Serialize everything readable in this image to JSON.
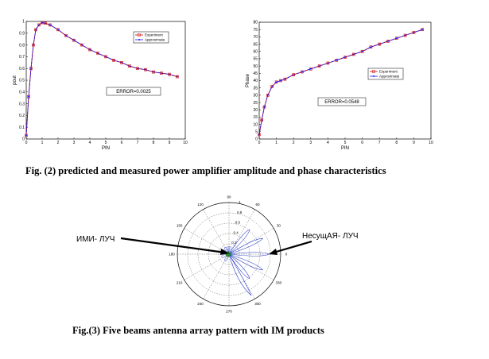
{
  "captions": {
    "fig2": "Fig. (2) predicted and measured power amplifier amplitude and phase characteristics",
    "fig3": "Fig.(3) Five beams antenna array pattern with IM products"
  },
  "chart_data": [
    {
      "type": "line",
      "xlabel": "PIN",
      "ylabel": "pout",
      "xlim": [
        0,
        10
      ],
      "ylim": [
        0,
        1
      ],
      "xticks": [
        "0",
        "1",
        "2",
        "3",
        "4",
        "5",
        "6",
        "7",
        "8",
        "9",
        "10"
      ],
      "yticks": [
        "0",
        "0.1",
        "0.2",
        "0.3",
        "0.4",
        "0.5",
        "0.6",
        "0.7",
        "0.8",
        "0.9",
        "1"
      ],
      "legend": [
        "Experiment",
        "Approximate"
      ],
      "legend_position": "top-right",
      "annotation": "ERROR=0.0025",
      "colors": {
        "experiment": "#cc0000",
        "approximate": "#1a1aff"
      },
      "series": [
        {
          "name": "Experiment",
          "x": [
            0,
            0.15,
            0.3,
            0.45,
            0.6,
            0.8,
            1,
            1.2,
            1.5,
            2,
            2.5,
            3,
            3.5,
            4,
            4.5,
            5,
            5.5,
            6,
            6.5,
            7,
            7.5,
            8,
            8.5,
            9,
            9.5
          ],
          "y": [
            0.03,
            0.36,
            0.6,
            0.8,
            0.93,
            0.97,
            0.99,
            0.985,
            0.97,
            0.93,
            0.88,
            0.84,
            0.8,
            0.76,
            0.73,
            0.7,
            0.67,
            0.65,
            0.62,
            0.6,
            0.59,
            0.57,
            0.56,
            0.55,
            0.53
          ]
        },
        {
          "name": "Approximate",
          "x": [
            0,
            0.15,
            0.3,
            0.45,
            0.6,
            0.8,
            1,
            1.2,
            1.5,
            2,
            2.5,
            3,
            3.5,
            4,
            4.5,
            5,
            5.5,
            6,
            6.5,
            7,
            7.5,
            8,
            8.5,
            9,
            9.5
          ],
          "y": [
            0.03,
            0.36,
            0.6,
            0.8,
            0.93,
            0.97,
            0.99,
            0.985,
            0.97,
            0.93,
            0.88,
            0.84,
            0.8,
            0.76,
            0.73,
            0.7,
            0.67,
            0.65,
            0.62,
            0.6,
            0.59,
            0.57,
            0.56,
            0.55,
            0.53
          ]
        }
      ]
    },
    {
      "type": "line",
      "xlabel": "PIN",
      "ylabel": "Phase",
      "xlim": [
        0,
        10
      ],
      "ylim": [
        0,
        80
      ],
      "xticks": [
        "0",
        "1",
        "2",
        "3",
        "4",
        "5",
        "6",
        "7",
        "8",
        "9",
        "10"
      ],
      "yticks": [
        "0",
        "5",
        "10",
        "15",
        "20",
        "25",
        "30",
        "35",
        "40",
        "45",
        "50",
        "55",
        "60",
        "65",
        "70",
        "75",
        "80"
      ],
      "legend": [
        "Experiment",
        "Approximate"
      ],
      "legend_position": "middle-right",
      "annotation": "ERROR=0.0548",
      "colors": {
        "experiment": "#cc0000",
        "approximate": "#1a1aff"
      },
      "series": [
        {
          "name": "Experiment",
          "x": [
            0,
            0.15,
            0.3,
            0.5,
            0.75,
            1,
            1.25,
            1.5,
            2,
            2.5,
            3,
            3.5,
            4,
            4.5,
            5,
            5.5,
            6,
            6.5,
            7,
            7.5,
            8,
            8.5,
            9,
            9.5
          ],
          "y": [
            3,
            13,
            22,
            30,
            36,
            39,
            40,
            41,
            44,
            46,
            48,
            50,
            52,
            54,
            56,
            58,
            60,
            63,
            65,
            67,
            69,
            71,
            73,
            75
          ]
        },
        {
          "name": "Approximate",
          "x": [
            0,
            0.15,
            0.3,
            0.5,
            0.75,
            1,
            1.25,
            1.5,
            2,
            2.5,
            3,
            3.5,
            4,
            4.5,
            5,
            5.5,
            6,
            6.5,
            7,
            7.5,
            8,
            8.5,
            9,
            9.5
          ],
          "y": [
            3,
            13,
            22,
            30,
            36,
            39,
            40,
            41,
            44,
            46,
            48,
            50,
            52,
            54,
            56,
            58,
            60,
            63,
            65,
            67,
            69,
            71,
            73,
            75
          ]
        }
      ]
    },
    {
      "type": "polar",
      "angle_labels": [
        "0",
        "30",
        "60",
        "90",
        "120",
        "150",
        "180",
        "210",
        "240",
        "270",
        "300",
        "330"
      ],
      "radial_labels": [
        "0.2",
        "0.4",
        "0.6",
        "0.8",
        "1"
      ],
      "beam_directions_deg": [
        50,
        25,
        0,
        -25,
        -50
      ],
      "beam_labels": {
        "left": "ИМИ- ЛУЧ",
        "right": "НесущАЯ- ЛУЧ"
      },
      "colors": {
        "beams": "#3344cc",
        "im": "#1a8a1a"
      }
    }
  ]
}
